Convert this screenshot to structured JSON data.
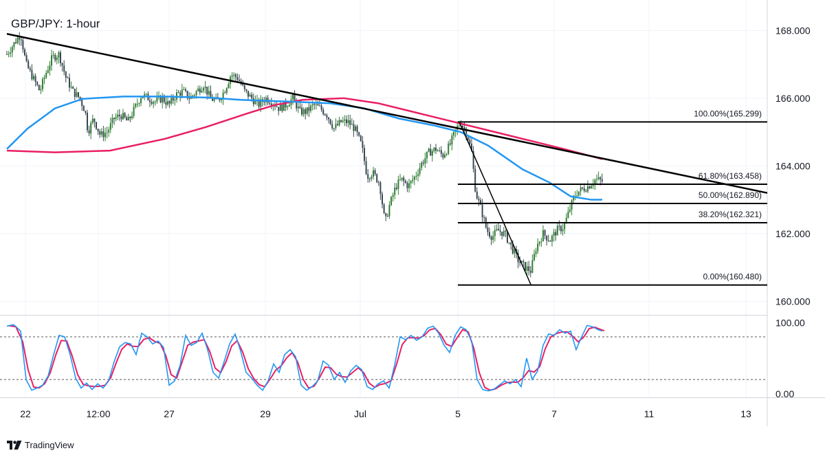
{
  "chart_data": {
    "type": "candlestick",
    "title": "GBP/JPY: 1-hour",
    "price_axis": {
      "range": [
        159.6,
        168.9
      ],
      "ticks": [
        {
          "label": "168.000",
          "v": 168
        },
        {
          "label": "166.000",
          "v": 166
        },
        {
          "label": "164.000",
          "v": 164
        },
        {
          "label": "162.000",
          "v": 162
        },
        {
          "label": "160.000",
          "v": 160
        }
      ]
    },
    "time_axis": {
      "range": [
        0,
        1116
      ],
      "ticks": [
        {
          "label": "22",
          "t": 37
        },
        {
          "label": "12:00",
          "t": 143
        },
        {
          "label": "27",
          "t": 246
        },
        {
          "label": "29",
          "t": 386
        },
        {
          "label": "Jul",
          "t": 524
        },
        {
          "label": "5",
          "t": 666
        },
        {
          "label": "7",
          "t": 806
        },
        {
          "label": "11",
          "t": 944
        },
        {
          "label": "13",
          "t": 1085
        }
      ]
    },
    "price_path": [
      [
        10,
        167.3
      ],
      [
        20,
        167.6
      ],
      [
        30,
        167.9
      ],
      [
        38,
        167.0
      ],
      [
        48,
        166.6
      ],
      [
        58,
        166.2
      ],
      [
        66,
        166.7
      ],
      [
        76,
        167.2
      ],
      [
        86,
        167.3
      ],
      [
        96,
        166.6
      ],
      [
        106,
        166.2
      ],
      [
        116,
        166.0
      ],
      [
        124,
        165.6
      ],
      [
        128,
        165.0
      ],
      [
        136,
        165.4
      ],
      [
        146,
        164.9
      ],
      [
        156,
        165.0
      ],
      [
        166,
        165.4
      ],
      [
        176,
        165.5
      ],
      [
        186,
        165.3
      ],
      [
        196,
        165.7
      ],
      [
        206,
        166.1
      ],
      [
        216,
        166.0
      ],
      [
        226,
        165.9
      ],
      [
        236,
        166.0
      ],
      [
        246,
        165.8
      ],
      [
        256,
        166.1
      ],
      [
        266,
        166.2
      ],
      [
        276,
        166.0
      ],
      [
        286,
        166.2
      ],
      [
        296,
        166.4
      ],
      [
        306,
        166.0
      ],
      [
        316,
        165.9
      ],
      [
        326,
        166.2
      ],
      [
        336,
        166.7
      ],
      [
        346,
        166.6
      ],
      [
        356,
        166.2
      ],
      [
        366,
        166.0
      ],
      [
        376,
        165.8
      ],
      [
        386,
        166.0
      ],
      [
        396,
        165.9
      ],
      [
        406,
        165.7
      ],
      [
        416,
        165.8
      ],
      [
        426,
        166.0
      ],
      [
        436,
        165.6
      ],
      [
        446,
        165.6
      ],
      [
        456,
        165.8
      ],
      [
        466,
        165.7
      ],
      [
        476,
        165.5
      ],
      [
        486,
        165.1
      ],
      [
        496,
        165.3
      ],
      [
        506,
        165.3
      ],
      [
        516,
        165.1
      ],
      [
        526,
        164.6
      ],
      [
        534,
        163.7
      ],
      [
        542,
        163.8
      ],
      [
        552,
        163.5
      ],
      [
        560,
        162.3
      ],
      [
        566,
        162.8
      ],
      [
        576,
        163.4
      ],
      [
        584,
        163.6
      ],
      [
        594,
        163.4
      ],
      [
        604,
        163.7
      ],
      [
        614,
        164.1
      ],
      [
        624,
        164.4
      ],
      [
        634,
        164.5
      ],
      [
        644,
        164.3
      ],
      [
        654,
        164.6
      ],
      [
        664,
        165.1
      ],
      [
        670,
        165.299
      ],
      [
        680,
        164.9
      ],
      [
        686,
        164.4
      ],
      [
        692,
        163.2
      ],
      [
        700,
        162.7
      ],
      [
        708,
        162.1
      ],
      [
        716,
        161.9
      ],
      [
        724,
        162.1
      ],
      [
        734,
        162.0
      ],
      [
        744,
        161.6
      ],
      [
        754,
        161.2
      ],
      [
        764,
        161.0
      ],
      [
        772,
        160.9
      ],
      [
        780,
        161.6
      ],
      [
        790,
        162.0
      ],
      [
        800,
        161.8
      ],
      [
        810,
        162.1
      ],
      [
        820,
        162.2
      ],
      [
        830,
        162.8
      ],
      [
        838,
        163.2
      ],
      [
        846,
        163.3
      ],
      [
        856,
        163.4
      ],
      [
        866,
        163.6
      ],
      [
        876,
        163.55
      ]
    ],
    "sma_blue": [
      [
        10,
        164.5
      ],
      [
        40,
        165.1
      ],
      [
        80,
        165.7
      ],
      [
        120,
        165.98
      ],
      [
        180,
        166.05
      ],
      [
        240,
        166.05
      ],
      [
        300,
        166.02
      ],
      [
        350,
        165.95
      ],
      [
        420,
        165.9
      ],
      [
        480,
        165.85
      ],
      [
        530,
        165.7
      ],
      [
        580,
        165.4
      ],
      [
        630,
        165.2
      ],
      [
        670,
        165.0
      ],
      [
        710,
        164.6
      ],
      [
        760,
        163.9
      ],
      [
        800,
        163.5
      ],
      [
        830,
        163.1
      ],
      [
        860,
        163.0
      ],
      [
        876,
        163.0
      ]
    ],
    "sma_pink": [
      [
        10,
        164.45
      ],
      [
        80,
        164.4
      ],
      [
        160,
        164.45
      ],
      [
        240,
        164.8
      ],
      [
        300,
        165.15
      ],
      [
        360,
        165.55
      ],
      [
        400,
        165.8
      ],
      [
        440,
        165.95
      ],
      [
        500,
        166.0
      ],
      [
        550,
        165.85
      ],
      [
        600,
        165.6
      ],
      [
        650,
        165.35
      ],
      [
        700,
        165.1
      ],
      [
        740,
        164.9
      ],
      [
        780,
        164.7
      ],
      [
        820,
        164.5
      ],
      [
        876,
        164.2
      ]
    ],
    "trendline": {
      "t1": 10,
      "p1": 167.9,
      "t2": 1116,
      "p2": 163.2
    },
    "swing_line": {
      "t1": 668,
      "p1": 165.3,
      "t2": 772,
      "p2": 160.5
    },
    "fibonacci": {
      "t_start": 666,
      "t_end": 1116,
      "levels": [
        {
          "label": "100.00%(165.299)",
          "price": 165.299
        },
        {
          "label": "61.80%(163.458)",
          "price": 163.458
        },
        {
          "label": "50.00%(162.890)",
          "price": 162.89
        },
        {
          "label": "38.20%(162.321)",
          "price": 162.321
        },
        {
          "label": "0.00%(160.480)",
          "price": 160.48
        }
      ]
    },
    "stochastic": {
      "range": [
        -5,
        107
      ],
      "ticks": [
        {
          "label": "100.00",
          "v": 100
        },
        {
          "label": "0.00",
          "v": 0
        }
      ],
      "levels": [
        80,
        20
      ],
      "k": [
        [
          10,
          95
        ],
        [
          20,
          97
        ],
        [
          30,
          88
        ],
        [
          38,
          20
        ],
        [
          46,
          5
        ],
        [
          54,
          8
        ],
        [
          62,
          12
        ],
        [
          70,
          25
        ],
        [
          78,
          55
        ],
        [
          86,
          82
        ],
        [
          94,
          80
        ],
        [
          102,
          55
        ],
        [
          110,
          22
        ],
        [
          118,
          8
        ],
        [
          126,
          15
        ],
        [
          134,
          6
        ],
        [
          142,
          14
        ],
        [
          150,
          8
        ],
        [
          158,
          18
        ],
        [
          166,
          45
        ],
        [
          174,
          66
        ],
        [
          182,
          72
        ],
        [
          190,
          70
        ],
        [
          198,
          55
        ],
        [
          206,
          85
        ],
        [
          214,
          80
        ],
        [
          222,
          70
        ],
        [
          230,
          74
        ],
        [
          238,
          65
        ],
        [
          246,
          12
        ],
        [
          254,
          18
        ],
        [
          262,
          40
        ],
        [
          270,
          82
        ],
        [
          278,
          68
        ],
        [
          286,
          72
        ],
        [
          294,
          85
        ],
        [
          302,
          62
        ],
        [
          310,
          30
        ],
        [
          318,
          22
        ],
        [
          326,
          45
        ],
        [
          334,
          70
        ],
        [
          342,
          84
        ],
        [
          350,
          60
        ],
        [
          358,
          30
        ],
        [
          366,
          22
        ],
        [
          374,
          12
        ],
        [
          382,
          5
        ],
        [
          390,
          18
        ],
        [
          398,
          42
        ],
        [
          406,
          30
        ],
        [
          414,
          55
        ],
        [
          422,
          62
        ],
        [
          430,
          52
        ],
        [
          438,
          12
        ],
        [
          446,
          5
        ],
        [
          454,
          10
        ],
        [
          462,
          18
        ],
        [
          470,
          46
        ],
        [
          478,
          40
        ],
        [
          486,
          20
        ],
        [
          494,
          30
        ],
        [
          502,
          16
        ],
        [
          510,
          32
        ],
        [
          518,
          40
        ],
        [
          526,
          34
        ],
        [
          534,
          10
        ],
        [
          542,
          6
        ],
        [
          550,
          14
        ],
        [
          558,
          18
        ],
        [
          566,
          8
        ],
        [
          574,
          40
        ],
        [
          582,
          80
        ],
        [
          590,
          76
        ],
        [
          598,
          82
        ],
        [
          606,
          75
        ],
        [
          614,
          80
        ],
        [
          622,
          92
        ],
        [
          630,
          95
        ],
        [
          638,
          85
        ],
        [
          646,
          68
        ],
        [
          654,
          58
        ],
        [
          662,
          82
        ],
        [
          670,
          94
        ],
        [
          678,
          90
        ],
        [
          686,
          74
        ],
        [
          694,
          20
        ],
        [
          702,
          6
        ],
        [
          710,
          4
        ],
        [
          718,
          6
        ],
        [
          726,
          12
        ],
        [
          734,
          18
        ],
        [
          742,
          14
        ],
        [
          750,
          20
        ],
        [
          758,
          10
        ],
        [
          766,
          50
        ],
        [
          774,
          20
        ],
        [
          782,
          32
        ],
        [
          790,
          68
        ],
        [
          798,
          84
        ],
        [
          806,
          82
        ],
        [
          814,
          90
        ],
        [
          822,
          85
        ],
        [
          830,
          88
        ],
        [
          838,
          62
        ],
        [
          846,
          80
        ],
        [
          854,
          96
        ],
        [
          862,
          94
        ],
        [
          870,
          90
        ],
        [
          876,
          88
        ]
      ]
    },
    "logo_text": "TradingView"
  }
}
